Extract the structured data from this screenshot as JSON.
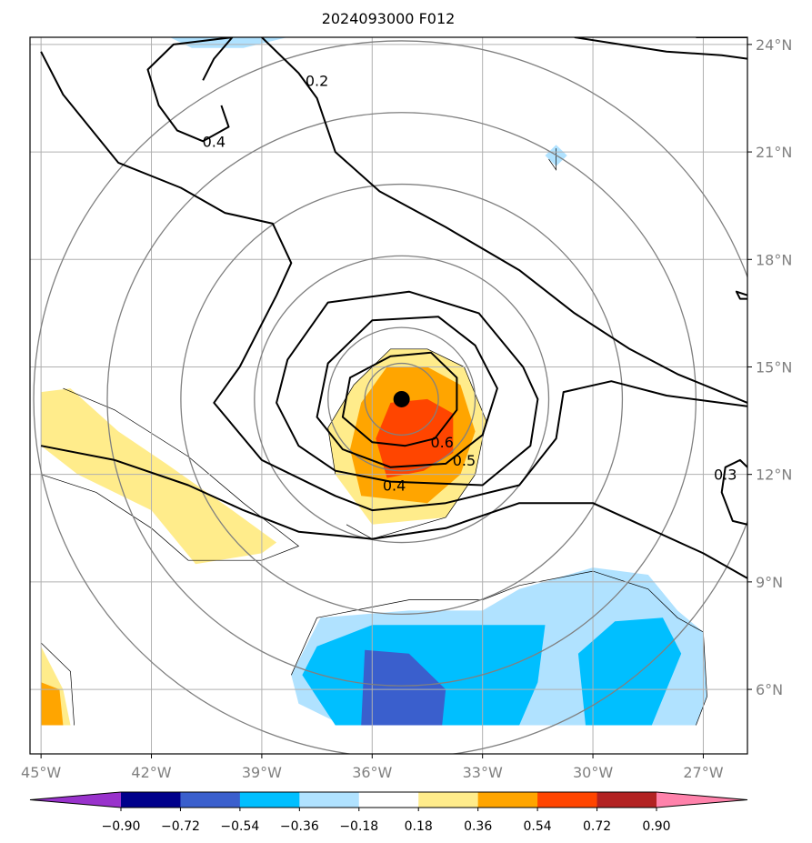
{
  "chart_data": {
    "type": "contour-map",
    "title": "2024093000 F012",
    "xlim": [
      -45.3,
      -25.8
    ],
    "ylim": [
      4.2,
      24.2
    ],
    "x_ticks": [
      {
        "value": -45,
        "label": "45°W"
      },
      {
        "value": -42,
        "label": "42°W"
      },
      {
        "value": -39,
        "label": "39°W"
      },
      {
        "value": -36,
        "label": "36°W"
      },
      {
        "value": -33,
        "label": "33°W"
      },
      {
        "value": -30,
        "label": "30°W"
      },
      {
        "value": -27,
        "label": "27°W"
      }
    ],
    "y_ticks": [
      {
        "value": 6,
        "label": "6°N"
      },
      {
        "value": 9,
        "label": "9°N"
      },
      {
        "value": 12,
        "label": "12°N"
      },
      {
        "value": 15,
        "label": "15°N"
      },
      {
        "value": 18,
        "label": "18°N"
      },
      {
        "value": 21,
        "label": "21°N"
      },
      {
        "value": 24,
        "label": "24°N"
      }
    ],
    "grid": true,
    "center": {
      "lon": -35.2,
      "lat": 14.1
    },
    "range_rings_deg": [
      1,
      2,
      4,
      6,
      8,
      10
    ],
    "colorbar": {
      "levels": [
        -0.9,
        -0.72,
        -0.54,
        -0.36,
        -0.18,
        0.18,
        0.36,
        0.54,
        0.72,
        0.9
      ],
      "tick_labels": [
        "−0.90",
        "−0.72",
        "−0.54",
        "−0.36",
        "−0.18",
        "0.18",
        "0.36",
        "0.54",
        "0.72",
        "0.90"
      ],
      "colors": [
        "#9932cc",
        "#00008b",
        "#3a5fcd",
        "#00bfff",
        "#b0e2ff",
        "#ffffff",
        "#ffec8b",
        "#ffa500",
        "#ff4500",
        "#b22222",
        "#ff82ab"
      ],
      "extend": "both"
    },
    "filled_regions": [
      {
        "level": 0.36,
        "color": "#ffec8b",
        "points": [
          [
            -37.0,
            12.0
          ],
          [
            -37.2,
            13.3
          ],
          [
            -36.5,
            14.5
          ],
          [
            -35.5,
            15.5
          ],
          [
            -34.5,
            15.5
          ],
          [
            -33.5,
            15.0
          ],
          [
            -32.9,
            13.5
          ],
          [
            -33.2,
            12.0
          ],
          [
            -34.0,
            10.8
          ],
          [
            -36.0,
            10.6
          ]
        ]
      },
      {
        "level": 0.54,
        "color": "#ffa500",
        "points": [
          [
            -36.3,
            11.4
          ],
          [
            -36.6,
            12.7
          ],
          [
            -36.3,
            14.0
          ],
          [
            -35.6,
            15.0
          ],
          [
            -34.5,
            15.0
          ],
          [
            -33.6,
            14.5
          ],
          [
            -33.2,
            13.2
          ],
          [
            -33.6,
            12.0
          ],
          [
            -34.5,
            11.2
          ]
        ]
      },
      {
        "level": 0.72,
        "color": "#ff4500",
        "points": [
          [
            -35.9,
            13.0
          ],
          [
            -35.5,
            14.0
          ],
          [
            -34.5,
            14.1
          ],
          [
            -33.8,
            13.7
          ],
          [
            -33.8,
            12.6
          ],
          [
            -34.6,
            12.1
          ],
          [
            -35.6,
            11.9
          ]
        ]
      },
      {
        "level": 0.36,
        "color": "#ffec8b",
        "points": [
          [
            -45.0,
            14.3
          ],
          [
            -44.2,
            14.4
          ],
          [
            -42.9,
            13.2
          ],
          [
            -41.6,
            12.3
          ],
          [
            -39.8,
            11.0
          ],
          [
            -38.6,
            10.1
          ],
          [
            -39.0,
            9.8
          ],
          [
            -40.8,
            9.5
          ],
          [
            -42.0,
            11.0
          ],
          [
            -44.0,
            12.0
          ],
          [
            -45.0,
            12.8
          ]
        ]
      },
      {
        "level": 0.36,
        "color": "#ffec8b",
        "points": [
          [
            -45.0,
            7.2
          ],
          [
            -44.4,
            6.0
          ],
          [
            -44.2,
            5.0
          ],
          [
            -45.0,
            5.0
          ]
        ]
      },
      {
        "level": 0.54,
        "color": "#ffa500",
        "points": [
          [
            -45.0,
            6.2
          ],
          [
            -44.5,
            6.0
          ],
          [
            -44.4,
            5.0
          ],
          [
            -45.0,
            5.0
          ]
        ]
      },
      {
        "level": -0.18,
        "color": "#b0e2ff",
        "points": [
          [
            -38.2,
            6.4
          ],
          [
            -37.4,
            8.0
          ],
          [
            -35.0,
            8.2
          ],
          [
            -33.0,
            8.2
          ],
          [
            -32.0,
            8.8
          ],
          [
            -30.0,
            9.4
          ],
          [
            -28.5,
            9.2
          ],
          [
            -27.7,
            8.2
          ],
          [
            -27.0,
            7.6
          ],
          [
            -26.9,
            5.8
          ],
          [
            -27.2,
            5.0
          ],
          [
            -36.8,
            5.0
          ],
          [
            -38.0,
            5.6
          ]
        ]
      },
      {
        "level": -0.36,
        "color": "#00bfff",
        "points": [
          [
            -37.9,
            6.4
          ],
          [
            -37.5,
            7.2
          ],
          [
            -36.0,
            7.8
          ],
          [
            -33.0,
            7.8
          ],
          [
            -31.3,
            7.8
          ],
          [
            -31.5,
            6.2
          ],
          [
            -32.0,
            5.0
          ],
          [
            -37.0,
            5.0
          ]
        ]
      },
      {
        "level": -0.36,
        "color": "#00bfff",
        "points": [
          [
            -30.4,
            7.0
          ],
          [
            -29.4,
            7.9
          ],
          [
            -28.1,
            8.0
          ],
          [
            -27.6,
            7.0
          ],
          [
            -28.4,
            5.0
          ],
          [
            -30.2,
            5.0
          ]
        ]
      },
      {
        "level": -0.54,
        "color": "#3a5fcd",
        "points": [
          [
            -36.2,
            7.1
          ],
          [
            -35.0,
            7.0
          ],
          [
            -34.0,
            6.0
          ],
          [
            -34.1,
            5.0
          ],
          [
            -36.3,
            5.0
          ]
        ]
      },
      {
        "level": -0.18,
        "color": "#b0e2ff",
        "points": [
          [
            -41.5,
            24.2
          ],
          [
            -40.9,
            23.9
          ],
          [
            -39.5,
            23.9
          ],
          [
            -38.3,
            24.2
          ]
        ]
      },
      {
        "level": -0.18,
        "color": "#b0e2ff",
        "points": [
          [
            -31.0,
            21.2
          ],
          [
            -30.7,
            20.9
          ],
          [
            -31.0,
            20.6
          ],
          [
            -31.3,
            20.9
          ]
        ]
      }
    ],
    "contours": [
      {
        "level": 0.6,
        "label": "0.6",
        "label_at": [
          -34.1,
          12.9
        ],
        "points": [
          [
            -35.5,
            15.3
          ],
          [
            -34.4,
            15.4
          ],
          [
            -33.7,
            14.7
          ],
          [
            -33.7,
            13.8
          ],
          [
            -34.3,
            13.0
          ],
          [
            -35.1,
            12.8
          ],
          [
            -36.0,
            12.9
          ],
          [
            -36.8,
            13.6
          ],
          [
            -36.6,
            14.7
          ]
        ]
      },
      {
        "level": 0.5,
        "label": "0.5",
        "label_at": [
          -33.5,
          12.4
        ],
        "points": [
          [
            -36.0,
            16.3
          ],
          [
            -34.2,
            16.4
          ],
          [
            -33.2,
            15.6
          ],
          [
            -32.6,
            14.4
          ],
          [
            -33.0,
            13.1
          ],
          [
            -34.0,
            12.3
          ],
          [
            -35.5,
            12.2
          ],
          [
            -36.8,
            12.7
          ],
          [
            -37.5,
            13.6
          ],
          [
            -37.2,
            15.1
          ]
        ]
      },
      {
        "level": 0.4,
        "label": "0.4",
        "label_at": [
          -35.4,
          11.7
        ],
        "points": [
          [
            -37.2,
            16.8
          ],
          [
            -35.0,
            17.1
          ],
          [
            -33.1,
            16.5
          ],
          [
            -31.9,
            15.0
          ],
          [
            -31.5,
            14.1
          ],
          [
            -31.7,
            12.8
          ],
          [
            -33.0,
            11.7
          ],
          [
            -35.5,
            11.8
          ],
          [
            -37.0,
            12.1
          ],
          [
            -38.0,
            12.8
          ],
          [
            -38.6,
            14.0
          ],
          [
            -38.3,
            15.2
          ]
        ]
      },
      {
        "level": 0.3,
        "label": "0.3",
        "label_at": [
          -26.4,
          12.0
        ],
        "points": [
          [
            -45.0,
            12.8
          ],
          [
            -43.0,
            12.4
          ],
          [
            -41.0,
            11.7
          ],
          [
            -39.5,
            11.0
          ],
          [
            -38.0,
            10.4
          ],
          [
            -36.0,
            10.2
          ],
          [
            -34.0,
            10.5
          ],
          [
            -32.0,
            11.2
          ],
          [
            -30.0,
            11.2
          ],
          [
            -28.5,
            10.5
          ],
          [
            -27.0,
            9.8
          ],
          [
            -25.8,
            9.1
          ]
        ]
      },
      {
        "level": 0.3,
        "label": "",
        "label_at": null,
        "points": [
          [
            -25.8,
            12.2
          ],
          [
            -26.0,
            12.4
          ],
          [
            -26.4,
            12.2
          ],
          [
            -26.5,
            11.5
          ],
          [
            -26.2,
            10.7
          ],
          [
            -25.8,
            10.6
          ]
        ]
      },
      {
        "level": 0.3,
        "label": "",
        "label_at": null,
        "points": [
          [
            -25.8,
            17.0
          ],
          [
            -26.1,
            17.1
          ],
          [
            -26.0,
            16.9
          ],
          [
            -25.8,
            16.9
          ]
        ]
      },
      {
        "level": 0.2,
        "label": "",
        "label_at": null,
        "points": [
          [
            -45.0,
            23.8
          ],
          [
            -44.4,
            22.6
          ],
          [
            -42.9,
            20.7
          ],
          [
            -41.2,
            20.0
          ],
          [
            -40.0,
            19.3
          ],
          [
            -38.7,
            19.0
          ],
          [
            -38.2,
            17.9
          ],
          [
            -38.6,
            17.0
          ],
          [
            -39.0,
            16.2
          ],
          [
            -39.6,
            15.0
          ],
          [
            -40.3,
            14.0
          ],
          [
            -39.0,
            12.4
          ],
          [
            -37.0,
            11.4
          ],
          [
            -36.0,
            11.0
          ],
          [
            -34.0,
            11.2
          ],
          [
            -32.0,
            11.7
          ],
          [
            -31.0,
            13.0
          ],
          [
            -30.8,
            14.3
          ],
          [
            -29.5,
            14.6
          ],
          [
            -28.0,
            14.2
          ],
          [
            -25.8,
            13.9
          ]
        ]
      },
      {
        "level": 0.2,
        "label": "0.2",
        "label_at": [
          -37.5,
          23.0
        ],
        "points": [
          [
            -39.0,
            24.2
          ],
          [
            -38.0,
            23.2
          ],
          [
            -37.5,
            22.5
          ],
          [
            -37.0,
            21.0
          ],
          [
            -35.8,
            19.9
          ],
          [
            -34.0,
            18.9
          ],
          [
            -32.0,
            17.7
          ],
          [
            -30.5,
            16.5
          ],
          [
            -29.0,
            15.5
          ],
          [
            -27.7,
            14.8
          ],
          [
            -25.8,
            14.0
          ]
        ]
      },
      {
        "level": 0.2,
        "label": "",
        "label_at": null,
        "points": [
          [
            -30.5,
            24.2
          ],
          [
            -28.0,
            23.8
          ],
          [
            -26.5,
            23.7
          ],
          [
            -25.8,
            23.6
          ]
        ]
      },
      {
        "level": 0.2,
        "label": "",
        "label_at": null,
        "points": [
          [
            -27.2,
            24.2
          ],
          [
            -26.2,
            24.2
          ],
          [
            -25.8,
            24.2
          ]
        ]
      },
      {
        "level": 0.4,
        "label": "0.4",
        "label_at": [
          -40.3,
          21.3
        ],
        "points": [
          [
            -40.1,
            22.3
          ],
          [
            -39.9,
            21.7
          ],
          [
            -40.6,
            21.3
          ],
          [
            -41.3,
            21.6
          ],
          [
            -41.8,
            22.3
          ],
          [
            -42.1,
            23.3
          ],
          [
            -41.4,
            24.0
          ],
          [
            -39.8,
            24.2
          ],
          [
            -40.3,
            23.6
          ],
          [
            -40.6,
            23.0
          ]
        ]
      }
    ],
    "thin_contours": [
      [
        [
          -37.0,
          12.0
        ],
        [
          -37.2,
          13.3
        ],
        [
          -36.5,
          14.5
        ],
        [
          -35.5,
          15.5
        ],
        [
          -34.5,
          15.5
        ],
        [
          -33.5,
          15.0
        ],
        [
          -32.9,
          13.5
        ],
        [
          -33.2,
          12.0
        ],
        [
          -34.0,
          10.8
        ],
        [
          -36.0,
          10.2
        ],
        [
          -36.7,
          10.6
        ]
      ],
      [
        [
          -44.4,
          14.4
        ],
        [
          -43.0,
          13.8
        ],
        [
          -41.0,
          12.5
        ],
        [
          -39.5,
          11.2
        ],
        [
          -38.0,
          10.0
        ],
        [
          -39.0,
          9.6
        ],
        [
          -41.0,
          9.6
        ],
        [
          -42.0,
          10.5
        ],
        [
          -43.5,
          11.5
        ],
        [
          -45.0,
          12.0
        ]
      ],
      [
        [
          -38.2,
          6.4
        ],
        [
          -37.5,
          8.0
        ],
        [
          -35.0,
          8.5
        ],
        [
          -33.0,
          8.5
        ],
        [
          -32.0,
          8.9
        ],
        [
          -30.0,
          9.3
        ],
        [
          -28.5,
          8.8
        ],
        [
          -27.7,
          8.0
        ],
        [
          -27.0,
          7.6
        ],
        [
          -26.9,
          5.8
        ],
        [
          -27.2,
          5.0
        ]
      ],
      [
        [
          -45.0,
          7.3
        ],
        [
          -44.2,
          6.5
        ],
        [
          -44.1,
          5.0
        ]
      ],
      [
        [
          -31.2,
          20.8
        ],
        [
          -31.0,
          20.5
        ],
        [
          -31.0,
          21.1
        ]
      ]
    ]
  }
}
